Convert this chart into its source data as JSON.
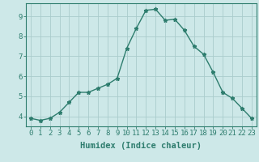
{
  "x": [
    0,
    1,
    2,
    3,
    4,
    5,
    6,
    7,
    8,
    9,
    10,
    11,
    12,
    13,
    14,
    15,
    16,
    17,
    18,
    19,
    20,
    21,
    22,
    23
  ],
  "y": [
    3.9,
    3.8,
    3.9,
    4.2,
    4.7,
    5.2,
    5.2,
    5.4,
    5.6,
    5.9,
    7.4,
    8.4,
    9.3,
    9.35,
    8.8,
    8.85,
    8.3,
    7.5,
    7.1,
    6.2,
    5.2,
    4.9,
    4.4,
    3.9
  ],
  "line_color": "#2e7d6e",
  "marker": "*",
  "marker_size": 3.5,
  "bg_color": "#cde8e8",
  "grid_color": "#aacccc",
  "xlabel": "Humidex (Indice chaleur)",
  "ylim": [
    3.5,
    9.65
  ],
  "xlim": [
    -0.5,
    23.5
  ],
  "yticks": [
    4,
    5,
    6,
    7,
    8,
    9
  ],
  "xticks": [
    0,
    1,
    2,
    3,
    4,
    5,
    6,
    7,
    8,
    9,
    10,
    11,
    12,
    13,
    14,
    15,
    16,
    17,
    18,
    19,
    20,
    21,
    22,
    23
  ],
  "tick_label_fontsize": 6.5,
  "xlabel_fontsize": 7.5,
  "line_width": 1.0
}
